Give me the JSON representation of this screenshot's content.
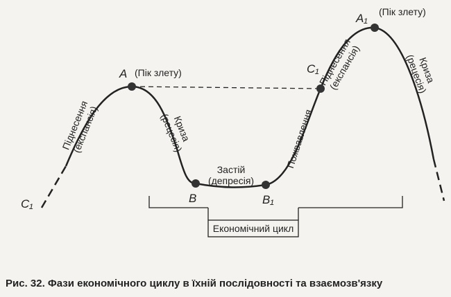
{
  "points": {
    "A": "A",
    "A_note": "(Пік злету)",
    "A1": "A₁",
    "A1_note": "(Пік злету)",
    "C1_left": "C₁",
    "C1_right": "C₁",
    "B": "B",
    "B1": "B₁"
  },
  "phases": {
    "expansion_left": [
      "Піднесення",
      "(експансія)"
    ],
    "recession_left": [
      "Криза",
      "(рецесія)"
    ],
    "depression": [
      "Застій",
      "(депресія)"
    ],
    "recovery": "Пожвавлення",
    "expansion_right": [
      "Піднесення",
      "(експансія)"
    ],
    "recession_right": [
      "Криза",
      "(рецесія)"
    ]
  },
  "cycle_label": "Економічний цикл",
  "caption": "Рис. 32. Фази економічного циклу в їхній послідовності та взаємозв'язку"
}
